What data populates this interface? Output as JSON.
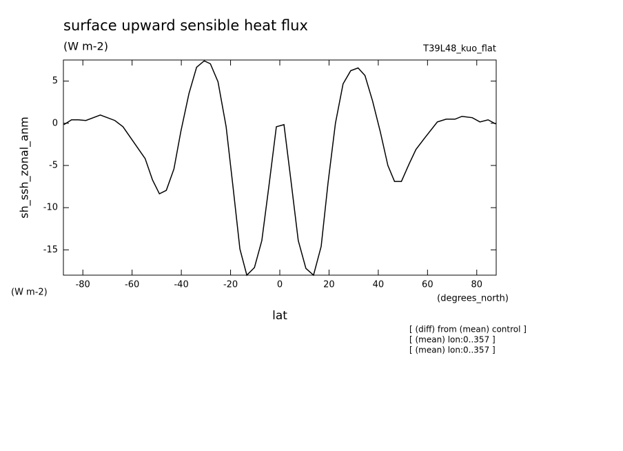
{
  "chart_data": {
    "type": "line",
    "title": "surface upward sensible heat flux",
    "subtitle": "(W m-2)",
    "run_label": "T39L48_kuo_flat",
    "y_label": "sh_ssh_zonal_anm",
    "y_unit": "(W m-2)",
    "x_label": "lat",
    "x_unit": "(degrees_north)",
    "notes": [
      "[ (diff) from (mean) control ]",
      "[ (mean) lon:0..357 ]",
      "[ (mean) lon:0..357 ]"
    ],
    "color": "#000000",
    "x": [
      -87.7,
      -84.6,
      -81.8,
      -78.8,
      -72.9,
      -67.0,
      -63.7,
      -59.8,
      -54.7,
      -51.7,
      -48.9,
      -46.1,
      -43.0,
      -40.2,
      -36.9,
      -33.8,
      -30.7,
      -28.2,
      -25.1,
      -21.8,
      -19.0,
      -16.2,
      -13.4,
      -10.3,
      -7.3,
      -4.5,
      -1.4,
      1.7,
      4.5,
      7.5,
      10.6,
      13.7,
      16.8,
      19.6,
      22.6,
      25.7,
      28.8,
      31.8,
      34.6,
      37.7,
      40.8,
      43.9,
      46.6,
      49.4,
      52.5,
      55.3,
      58.7,
      64.0,
      67.6,
      71.2,
      74.0,
      78.2,
      81.3,
      84.6,
      87.7
    ],
    "values": [
      -0.16,
      0.41,
      0.41,
      0.33,
      0.98,
      0.33,
      -0.41,
      -2.05,
      -4.18,
      -6.72,
      -8.36,
      -7.95,
      -5.41,
      -0.98,
      3.52,
      6.64,
      7.4,
      7.05,
      4.92,
      -0.41,
      -7.54,
      -14.9,
      -18.0,
      -17.1,
      -13.9,
      -7.62,
      -0.41,
      -0.16,
      -6.72,
      -13.9,
      -17.2,
      -18.0,
      -14.6,
      -7.05,
      0,
      4.67,
      6.23,
      6.56,
      5.66,
      2.62,
      -0.98,
      -5.0,
      -6.89,
      -6.89,
      -4.84,
      -3.11,
      -1.8,
      0.16,
      0.49,
      0.49,
      0.82,
      0.66,
      0.16,
      0.41,
      -0.08
    ],
    "xlim": [
      -87.9,
      87.9
    ],
    "ylim": [
      -18,
      7.5
    ],
    "xticks": [
      -80,
      -60,
      -40,
      -20,
      0,
      20,
      40,
      60,
      80
    ],
    "yticks": [
      -15,
      -10,
      -5,
      0,
      5
    ]
  }
}
